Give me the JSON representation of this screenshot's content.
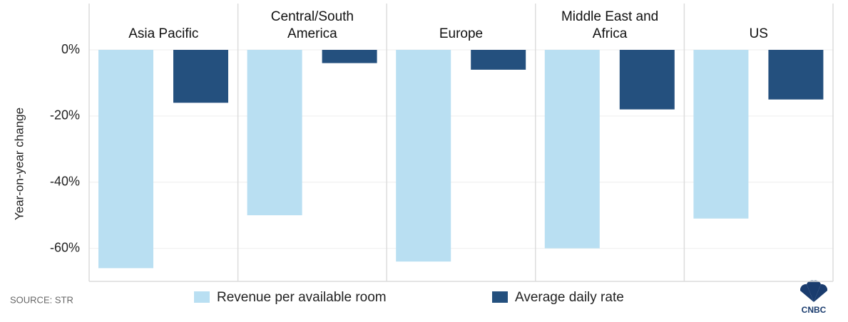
{
  "chart_data": {
    "type": "bar",
    "categories": [
      "Asia Pacific",
      "Central/South America",
      "Europe",
      "Middle East and Africa",
      "US"
    ],
    "series": [
      {
        "name": "Revenue per available room",
        "color": "#b9dff2",
        "values": [
          -66,
          -50,
          -64,
          -60,
          -51
        ]
      },
      {
        "name": "Average daily rate",
        "color": "#24507e",
        "values": [
          -16,
          -4,
          -6,
          -18,
          -15
        ]
      }
    ],
    "ylabel": "Year-on-year change",
    "ylim": [
      -70,
      14
    ],
    "yticks": [
      {
        "value": 0,
        "label": "0%"
      },
      {
        "value": -20,
        "label": "-20%"
      },
      {
        "value": -40,
        "label": "-40%"
      },
      {
        "value": -60,
        "label": "-60%"
      }
    ],
    "grid": true,
    "source": "SOURCE: STR",
    "logo": "CNBC"
  }
}
